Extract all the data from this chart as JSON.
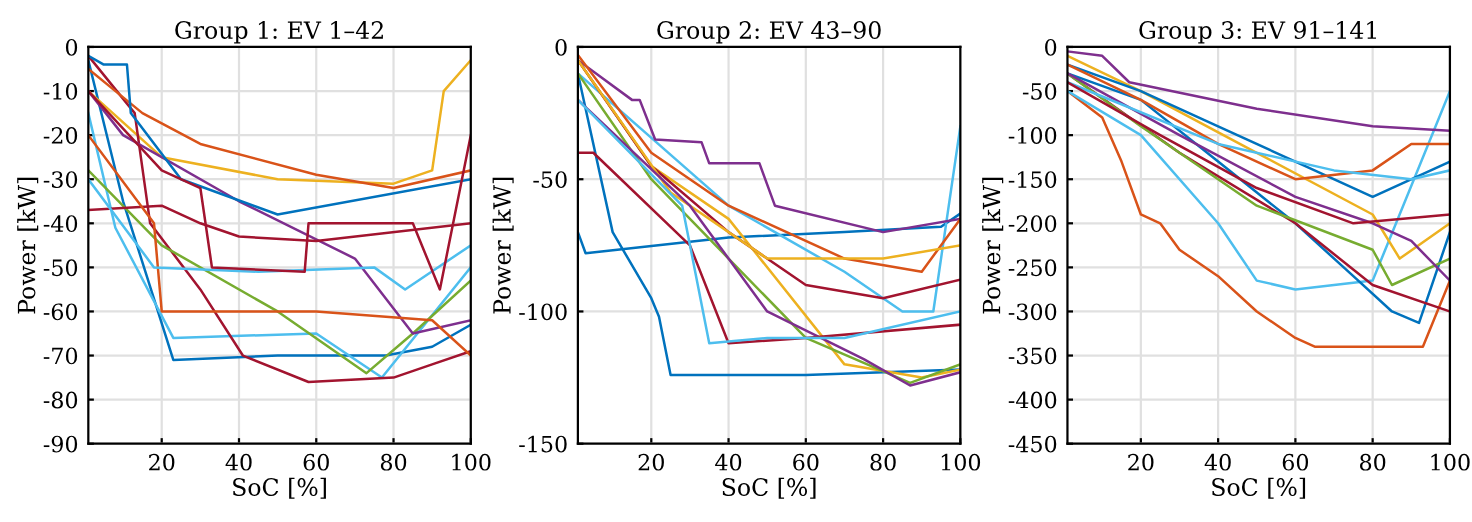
{
  "chart_data": [
    {
      "type": "line",
      "title": "Group 1: EV 1–42",
      "xlabel": "SoC [%]",
      "ylabel": "Power [kW]",
      "xlim": [
        1,
        100
      ],
      "xticks": [
        20,
        40,
        60,
        80,
        100
      ],
      "ylim": [
        -90,
        0
      ],
      "yticks": [
        -90,
        -80,
        -70,
        -60,
        -50,
        -40,
        -30,
        -20,
        -10,
        0
      ],
      "grid": true,
      "series": [
        {
          "color": "#0072bd",
          "x": [
            1,
            10,
            23,
            50,
            78,
            90,
            100
          ],
          "values": [
            -3,
            -35,
            -71,
            -70,
            -70,
            -68,
            -63
          ]
        },
        {
          "color": "#4dbeee",
          "x": [
            1,
            8,
            23,
            60,
            77,
            100
          ],
          "values": [
            -15,
            -41,
            -66,
            -65,
            -75,
            -50
          ]
        },
        {
          "color": "#edb120",
          "x": [
            1,
            20,
            50,
            80,
            90,
            93,
            100
          ],
          "values": [
            -10,
            -25,
            -30,
            -31,
            -28,
            -10,
            -3
          ]
        },
        {
          "color": "#a2142f",
          "x": [
            1,
            13,
            17,
            30,
            41,
            58,
            80,
            90,
            100
          ],
          "values": [
            -2,
            -15,
            -40,
            -55,
            -70,
            -76,
            -75,
            -72,
            -69
          ]
        },
        {
          "color": "#d95319",
          "x": [
            1,
            15,
            30,
            60,
            80,
            100
          ],
          "values": [
            -5,
            -15,
            -22,
            -29,
            -32,
            -28
          ]
        },
        {
          "color": "#77ac30",
          "x": [
            1,
            20,
            50,
            73,
            85,
            100
          ],
          "values": [
            -28,
            -45,
            -60,
            -74,
            -65,
            -53
          ]
        },
        {
          "color": "#7e2f8e",
          "x": [
            1,
            10,
            40,
            70,
            85,
            100
          ],
          "values": [
            -10,
            -20,
            -35,
            -48,
            -65,
            -62
          ]
        },
        {
          "color": "#a2142f",
          "x": [
            1,
            20,
            30,
            40,
            60,
            100
          ],
          "values": [
            -37,
            -36,
            -40,
            -43,
            -44,
            -40
          ]
        },
        {
          "color": "#0072bd",
          "x": [
            1,
            5,
            11,
            12,
            25,
            50,
            100
          ],
          "values": [
            -2,
            -4,
            -4,
            -15,
            -30,
            -38,
            -30
          ]
        },
        {
          "color": "#d95319",
          "x": [
            1,
            18,
            20,
            60,
            90,
            100
          ],
          "values": [
            -20,
            -40,
            -60,
            -60,
            -62,
            -70
          ]
        },
        {
          "color": "#4dbeee",
          "x": [
            1,
            18,
            45,
            75,
            83,
            100
          ],
          "values": [
            -30,
            -50,
            -51,
            -50,
            -55,
            -45
          ]
        },
        {
          "color": "#a2142f",
          "x": [
            1,
            20,
            30,
            33,
            57,
            58,
            85,
            92,
            100
          ],
          "values": [
            -10,
            -28,
            -32,
            -50,
            -51,
            -40,
            -40,
            -55,
            -20
          ]
        }
      ]
    },
    {
      "type": "line",
      "title": "Group 2: EV 43–90",
      "xlabel": "SoC [%]",
      "ylabel": "Power [kW]",
      "xlim": [
        1,
        100
      ],
      "xticks": [
        20,
        40,
        60,
        80,
        100
      ],
      "ylim": [
        -150,
        0
      ],
      "yticks": [
        -150,
        -100,
        -50,
        0
      ],
      "grid": true,
      "series": [
        {
          "color": "#0072bd",
          "x": [
            1,
            3,
            40,
            70,
            95,
            100
          ],
          "values": [
            -70,
            -78,
            -72,
            -70,
            -68,
            -63
          ]
        },
        {
          "color": "#0072bd",
          "x": [
            1,
            10,
            20,
            22,
            25,
            60,
            100
          ],
          "values": [
            -10,
            -70,
            -95,
            -102,
            -124,
            -124,
            -122
          ]
        },
        {
          "color": "#4dbeee",
          "x": [
            1,
            40,
            70,
            85,
            93,
            100
          ],
          "values": [
            -10,
            -60,
            -85,
            -100,
            -100,
            -30
          ]
        },
        {
          "color": "#7e2f8e",
          "x": [
            1,
            15,
            17,
            21,
            33,
            35,
            48,
            52,
            80,
            100
          ],
          "values": [
            -5,
            -20,
            -20,
            -35,
            -36,
            -44,
            -44,
            -60,
            -70,
            -65
          ]
        },
        {
          "color": "#edb120",
          "x": [
            1,
            20,
            40,
            70,
            90,
            100
          ],
          "values": [
            -5,
            -45,
            -65,
            -120,
            -125,
            -122
          ]
        },
        {
          "color": "#77ac30",
          "x": [
            1,
            20,
            40,
            60,
            87,
            100
          ],
          "values": [
            -10,
            -50,
            -80,
            -110,
            -127,
            -120
          ]
        },
        {
          "color": "#a2142f",
          "x": [
            1,
            20,
            40,
            60,
            80,
            100
          ],
          "values": [
            -5,
            -45,
            -70,
            -90,
            -95,
            -88
          ]
        },
        {
          "color": "#d95319",
          "x": [
            1,
            20,
            40,
            70,
            90,
            100
          ],
          "values": [
            -3,
            -40,
            -60,
            -80,
            -85,
            -65
          ]
        },
        {
          "color": "#edb120",
          "x": [
            1,
            25,
            50,
            80,
            100
          ],
          "values": [
            -5,
            -55,
            -80,
            -80,
            -75
          ]
        },
        {
          "color": "#7e2f8e",
          "x": [
            1,
            30,
            50,
            75,
            87,
            100
          ],
          "values": [
            -20,
            -60,
            -100,
            -118,
            -128,
            -123
          ]
        },
        {
          "color": "#a2142f",
          "x": [
            1,
            5,
            30,
            40,
            60,
            100
          ],
          "values": [
            -40,
            -40,
            -75,
            -112,
            -110,
            -105
          ]
        },
        {
          "color": "#4dbeee",
          "x": [
            1,
            28,
            35,
            50,
            70,
            100
          ],
          "values": [
            -20,
            -60,
            -112,
            -110,
            -110,
            -100
          ]
        }
      ]
    },
    {
      "type": "line",
      "title": "Group 3: EV 91–141",
      "xlabel": "SoC [%]",
      "ylabel": "Power [kW]",
      "xlim": [
        1,
        100
      ],
      "xticks": [
        20,
        40,
        60,
        80,
        100
      ],
      "ylim": [
        -450,
        0
      ],
      "yticks": [
        -450,
        -400,
        -350,
        -300,
        -250,
        -200,
        -150,
        -100,
        -50,
        0
      ],
      "grid": true,
      "series": [
        {
          "color": "#d95319",
          "x": [
            1,
            10,
            15,
            20,
            25,
            30,
            40,
            50,
            60,
            65,
            93,
            100
          ],
          "values": [
            -50,
            -80,
            -130,
            -190,
            -200,
            -230,
            -260,
            -300,
            -330,
            -340,
            -340,
            -265
          ]
        },
        {
          "color": "#4dbeee",
          "x": [
            1,
            20,
            40,
            50,
            60,
            80,
            100
          ],
          "values": [
            -50,
            -100,
            -200,
            -265,
            -275,
            -265,
            -50
          ]
        },
        {
          "color": "#0072bd",
          "x": [
            1,
            20,
            40,
            60,
            75,
            85,
            92,
            100
          ],
          "values": [
            -30,
            -60,
            -130,
            -200,
            -260,
            -300,
            -313,
            -210
          ]
        },
        {
          "color": "#a2142f",
          "x": [
            1,
            30,
            60,
            80,
            100
          ],
          "values": [
            -30,
            -120,
            -200,
            -270,
            -300
          ]
        },
        {
          "color": "#7e2f8e",
          "x": [
            1,
            10,
            17,
            50,
            80,
            100
          ],
          "values": [
            -5,
            -10,
            -40,
            -70,
            -90,
            -95
          ]
        },
        {
          "color": "#edb120",
          "x": [
            1,
            20,
            50,
            80,
            87,
            100
          ],
          "values": [
            -10,
            -50,
            -120,
            -190,
            -240,
            -200
          ]
        },
        {
          "color": "#77ac30",
          "x": [
            1,
            20,
            50,
            80,
            85,
            100
          ],
          "values": [
            -30,
            -90,
            -180,
            -230,
            -270,
            -240
          ]
        },
        {
          "color": "#0072bd",
          "x": [
            1,
            20,
            40,
            60,
            80,
            100
          ],
          "values": [
            -20,
            -50,
            -90,
            -130,
            -170,
            -130
          ]
        },
        {
          "color": "#d95319",
          "x": [
            1,
            20,
            40,
            60,
            80,
            90,
            100
          ],
          "values": [
            -20,
            -60,
            -110,
            -150,
            -140,
            -110,
            -110
          ]
        },
        {
          "color": "#7e2f8e",
          "x": [
            1,
            30,
            60,
            80,
            90,
            100
          ],
          "values": [
            -30,
            -100,
            -170,
            -200,
            -220,
            -265
          ]
        },
        {
          "color": "#4dbeee",
          "x": [
            1,
            40,
            70,
            90,
            100
          ],
          "values": [
            -40,
            -110,
            -140,
            -150,
            -140
          ]
        },
        {
          "color": "#a2142f",
          "x": [
            1,
            25,
            50,
            75,
            100
          ],
          "values": [
            -40,
            -100,
            -160,
            -200,
            -190
          ]
        }
      ]
    }
  ]
}
